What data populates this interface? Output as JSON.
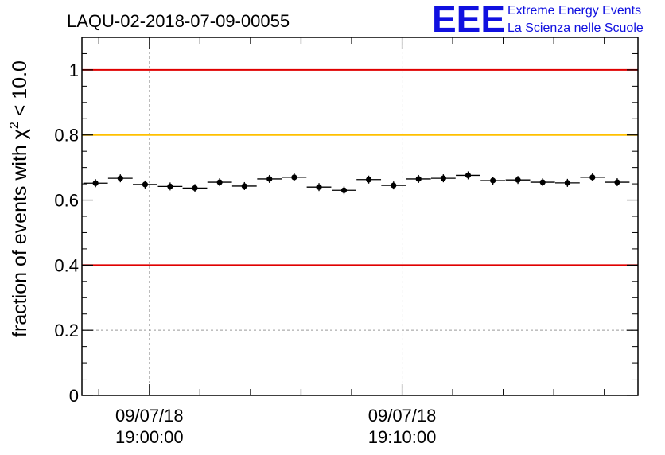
{
  "chart_data": {
    "type": "scatter",
    "title": "LAQU-02-2018-07-09-00055",
    "ylabel_prefix": "fraction of events with χ",
    "ylabel_superscript": "2",
    "ylabel_suffix": " < 10.0",
    "xlabel": "",
    "ylim": [
      0,
      1.1
    ],
    "xlim_minutes": [
      -2.67,
      19.33
    ],
    "grid": true,
    "y_ticks": [
      {
        "value": 0,
        "label": "0"
      },
      {
        "value": 0.2,
        "label": "0.2"
      },
      {
        "value": 0.4,
        "label": "0.4"
      },
      {
        "value": 0.6,
        "label": "0.6"
      },
      {
        "value": 0.8,
        "label": "0.8"
      },
      {
        "value": 1.0,
        "label": "1"
      }
    ],
    "x_major_ticks": [
      {
        "minute": 0,
        "date": "09/07/18",
        "time": "19:00:00"
      },
      {
        "minute": 10,
        "date": "09/07/18",
        "time": "19:10:00"
      }
    ],
    "x_minor_tick_step_minutes": 2,
    "reference_lines": [
      {
        "y": 1.0,
        "color": "#e00000"
      },
      {
        "y": 0.8,
        "color": "#ffc000"
      },
      {
        "y": 0.4,
        "color": "#e00000"
      }
    ],
    "bin_width_minutes": 0.97,
    "points": [
      {
        "x": -2.13,
        "y": 0.652
      },
      {
        "x": -1.15,
        "y": 0.667
      },
      {
        "x": -0.17,
        "y": 0.648
      },
      {
        "x": 0.82,
        "y": 0.642
      },
      {
        "x": 1.8,
        "y": 0.637
      },
      {
        "x": 2.78,
        "y": 0.655
      },
      {
        "x": 3.76,
        "y": 0.643
      },
      {
        "x": 4.75,
        "y": 0.665
      },
      {
        "x": 5.73,
        "y": 0.67
      },
      {
        "x": 6.71,
        "y": 0.64
      },
      {
        "x": 7.7,
        "y": 0.63
      },
      {
        "x": 8.68,
        "y": 0.663
      },
      {
        "x": 9.66,
        "y": 0.645
      },
      {
        "x": 10.65,
        "y": 0.665
      },
      {
        "x": 11.63,
        "y": 0.667
      },
      {
        "x": 12.61,
        "y": 0.676
      },
      {
        "x": 13.59,
        "y": 0.66
      },
      {
        "x": 14.58,
        "y": 0.662
      },
      {
        "x": 15.56,
        "y": 0.655
      },
      {
        "x": 16.54,
        "y": 0.653
      },
      {
        "x": 17.53,
        "y": 0.67
      },
      {
        "x": 18.51,
        "y": 0.655
      }
    ]
  },
  "logo": {
    "mark": "EEE",
    "line1": "Extreme Energy Events",
    "line2": "La Scienza nelle Scuole",
    "color": "#1010e0"
  }
}
